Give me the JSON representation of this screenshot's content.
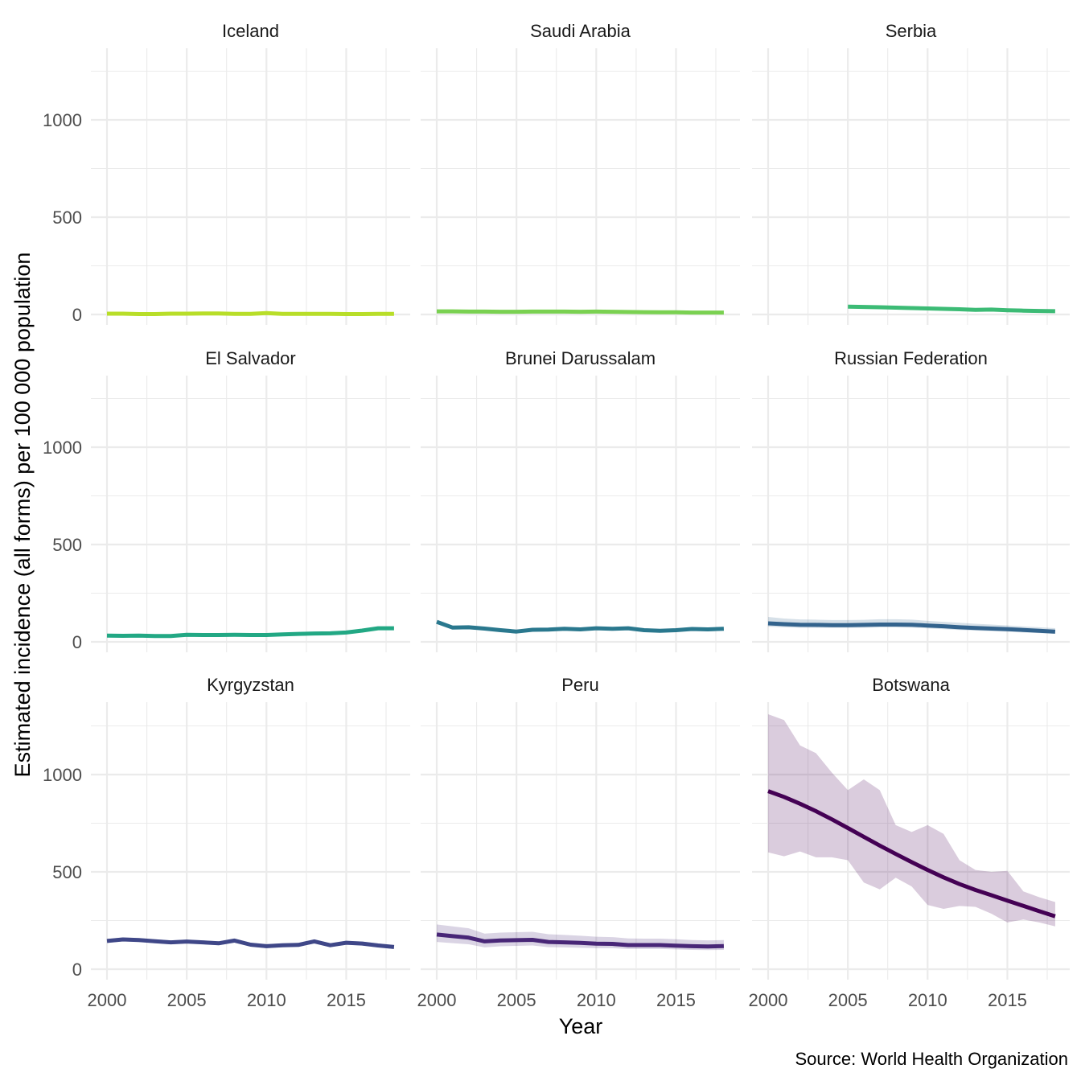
{
  "chart_data": {
    "type": "line",
    "subtype": "faceted line with confidence ribbon",
    "xlabel": "Year",
    "ylabel": "Estimated incidence (all forms) per 100 000 population",
    "caption": "Source: World Health Organization",
    "xlim": [
      2000,
      2018
    ],
    "ylim": [
      0,
      1300
    ],
    "x_ticks": [
      2000,
      2005,
      2010,
      2015
    ],
    "x_tick_labels": [
      "2000",
      "2005",
      "2010",
      "2015"
    ],
    "y_ticks": [
      0,
      500,
      1000
    ],
    "y_tick_labels": [
      "0",
      "500",
      "1000"
    ],
    "grid": true,
    "layout": {
      "rows": 3,
      "cols": 3
    },
    "years": [
      2000,
      2001,
      2002,
      2003,
      2004,
      2005,
      2006,
      2007,
      2008,
      2009,
      2010,
      2011,
      2012,
      2013,
      2014,
      2015,
      2016,
      2017,
      2018
    ],
    "panels": [
      {
        "name": "Iceland",
        "color": "#B8DE29",
        "values": [
          4,
          4,
          2,
          2,
          4,
          4,
          5,
          5,
          3,
          3,
          7,
          3,
          3,
          3,
          3,
          2,
          2,
          3,
          3
        ],
        "lo": null,
        "hi": null
      },
      {
        "name": "Saudi Arabia",
        "color": "#7AD151",
        "values": [
          16,
          16,
          15,
          15,
          14,
          14,
          15,
          15,
          15,
          14,
          15,
          14,
          13,
          12,
          11,
          11,
          10,
          10,
          10
        ],
        "lo": null,
        "hi": null
      },
      {
        "name": "Serbia",
        "color": "#3CBB75",
        "values": [
          null,
          null,
          null,
          null,
          null,
          40,
          39,
          37,
          35,
          33,
          31,
          29,
          27,
          24,
          25,
          22,
          20,
          18,
          17
        ],
        "lo": null,
        "hi": null
      },
      {
        "name": "El Salvador",
        "color": "#22A884",
        "values": [
          32,
          31,
          32,
          30,
          30,
          36,
          35,
          35,
          36,
          35,
          35,
          38,
          41,
          43,
          44,
          48,
          58,
          70,
          70
        ],
        "lo": null,
        "hi": null
      },
      {
        "name": "Brunei Darussalam",
        "color": "#2A788E",
        "values": [
          103,
          73,
          75,
          68,
          60,
          53,
          62,
          63,
          67,
          64,
          70,
          67,
          70,
          60,
          57,
          60,
          66,
          64,
          67
        ],
        "lo": null,
        "hi": null
      },
      {
        "name": "Russian Federation",
        "color": "#33638D",
        "values": [
          95,
          91,
          88,
          87,
          86,
          86,
          87,
          89,
          89,
          88,
          84,
          80,
          75,
          71,
          68,
          65,
          61,
          57,
          52
        ],
        "lo": [
          78,
          75,
          72,
          72,
          72,
          72,
          72,
          74,
          74,
          73,
          69,
          65,
          61,
          58,
          55,
          52,
          48,
          45,
          42
        ],
        "hi": [
          128,
          120,
          115,
          114,
          112,
          112,
          113,
          116,
          116,
          114,
          108,
          103,
          98,
          93,
          89,
          84,
          79,
          75,
          70
        ]
      },
      {
        "name": "Kyrgyzstan",
        "color": "#3F4788",
        "values": [
          145,
          153,
          150,
          144,
          138,
          142,
          138,
          133,
          147,
          126,
          118,
          123,
          125,
          143,
          123,
          136,
          132,
          122,
          114
        ],
        "lo": [
          135,
          143,
          140,
          134,
          128,
          132,
          128,
          123,
          137,
          116,
          108,
          113,
          115,
          133,
          113,
          126,
          122,
          112,
          104
        ],
        "hi": [
          155,
          163,
          160,
          154,
          148,
          152,
          148,
          143,
          157,
          136,
          128,
          133,
          135,
          153,
          133,
          146,
          142,
          132,
          124
        ]
      },
      {
        "name": "Peru",
        "color": "#482677",
        "values": [
          178,
          170,
          162,
          143,
          148,
          149,
          151,
          140,
          138,
          135,
          131,
          130,
          124,
          124,
          124,
          121,
          118,
          117,
          119
        ],
        "lo": [
          140,
          134,
          128,
          112,
          118,
          120,
          122,
          113,
          112,
          110,
          108,
          108,
          104,
          104,
          104,
          102,
          99,
          98,
          99
        ],
        "hi": [
          230,
          220,
          210,
          183,
          188,
          190,
          192,
          180,
          176,
          172,
          167,
          165,
          158,
          157,
          157,
          154,
          150,
          148,
          150
        ]
      },
      {
        "name": "Botswana",
        "color": "#440154",
        "values": [
          915,
          885,
          850,
          812,
          770,
          725,
          680,
          635,
          592,
          550,
          510,
          472,
          437,
          407,
          380,
          352,
          325,
          298,
          272
        ],
        "lo": [
          600,
          580,
          605,
          575,
          575,
          560,
          445,
          410,
          470,
          425,
          330,
          310,
          325,
          320,
          285,
          240,
          255,
          240,
          220
        ],
        "hi": [
          1310,
          1280,
          1150,
          1110,
          1010,
          920,
          975,
          920,
          740,
          705,
          740,
          695,
          560,
          510,
          500,
          505,
          400,
          370,
          345
        ]
      }
    ]
  }
}
